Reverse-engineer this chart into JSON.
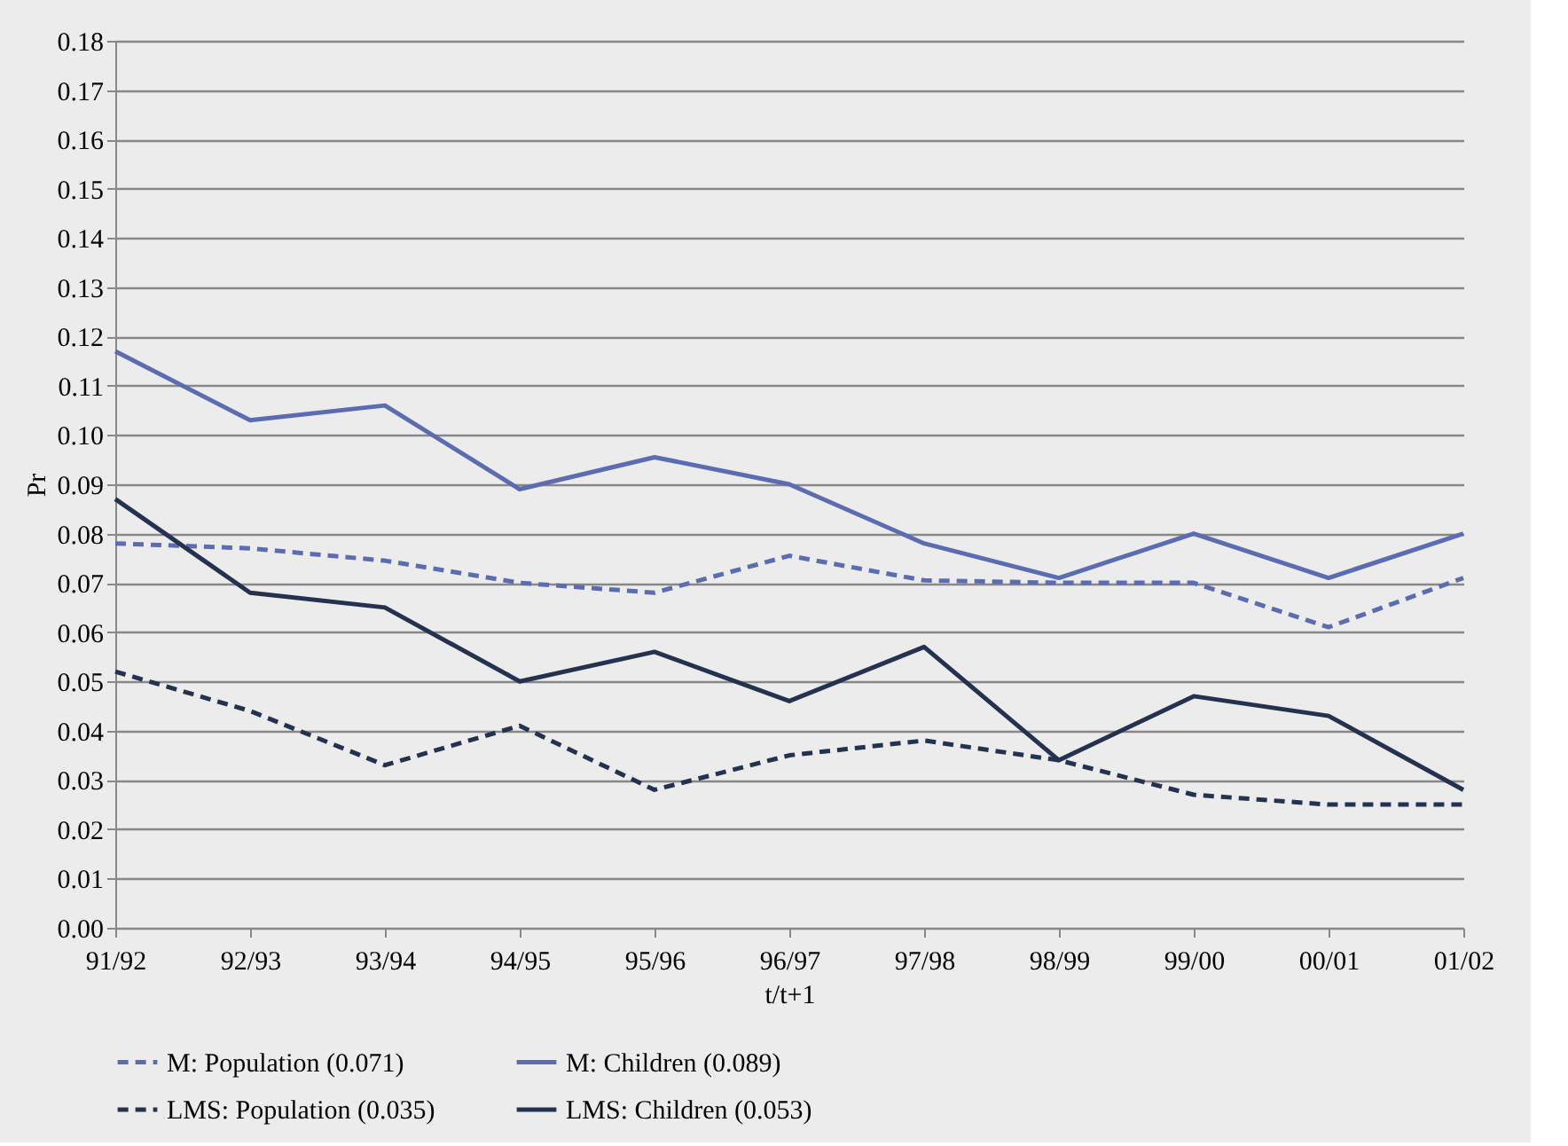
{
  "chart_data": {
    "type": "line",
    "xlabel": "t/t+1",
    "ylabel": "Pr",
    "categories": [
      "91/92",
      "92/93",
      "93/94",
      "94/95",
      "95/96",
      "96/97",
      "97/98",
      "98/99",
      "99/00",
      "00/01",
      "01/02"
    ],
    "series": [
      {
        "name": "M: Population (0.071)",
        "color": "#5b6db0",
        "line_style": "dashed",
        "values": [
          0.078,
          0.077,
          0.0745,
          0.07,
          0.068,
          0.0755,
          0.0705,
          0.07,
          0.07,
          0.061,
          0.071
        ]
      },
      {
        "name": "M: Children (0.089)",
        "color": "#5b6db0",
        "line_style": "solid",
        "values": [
          0.117,
          0.103,
          0.106,
          0.089,
          0.0955,
          0.09,
          0.078,
          0.071,
          0.08,
          0.071,
          0.08
        ]
      },
      {
        "name": "LMS: Population (0.035)",
        "color": "#243250",
        "line_style": "dashed",
        "values": [
          0.052,
          0.044,
          0.033,
          0.041,
          0.028,
          0.035,
          0.038,
          0.034,
          0.027,
          0.025,
          0.025
        ]
      },
      {
        "name": "LMS: Children (0.053)",
        "color": "#243250",
        "line_style": "solid",
        "values": [
          0.087,
          0.068,
          0.065,
          0.05,
          0.056,
          0.046,
          0.057,
          0.034,
          0.047,
          0.043,
          0.028
        ]
      }
    ],
    "ylim": [
      0,
      0.18
    ],
    "yticks": [
      {
        "value": 0,
        "label": "0.00"
      },
      0.01,
      0.02,
      0.03,
      0.04,
      0.05,
      0.06,
      0.07,
      0.08,
      0.09,
      {
        "value": 0.1,
        "label": "0.10"
      },
      0.11,
      0.12,
      0.13,
      0.14,
      0.15,
      0.16,
      0.17,
      0.18
    ],
    "grid": "y",
    "legend": "bottom",
    "marker": "none"
  }
}
